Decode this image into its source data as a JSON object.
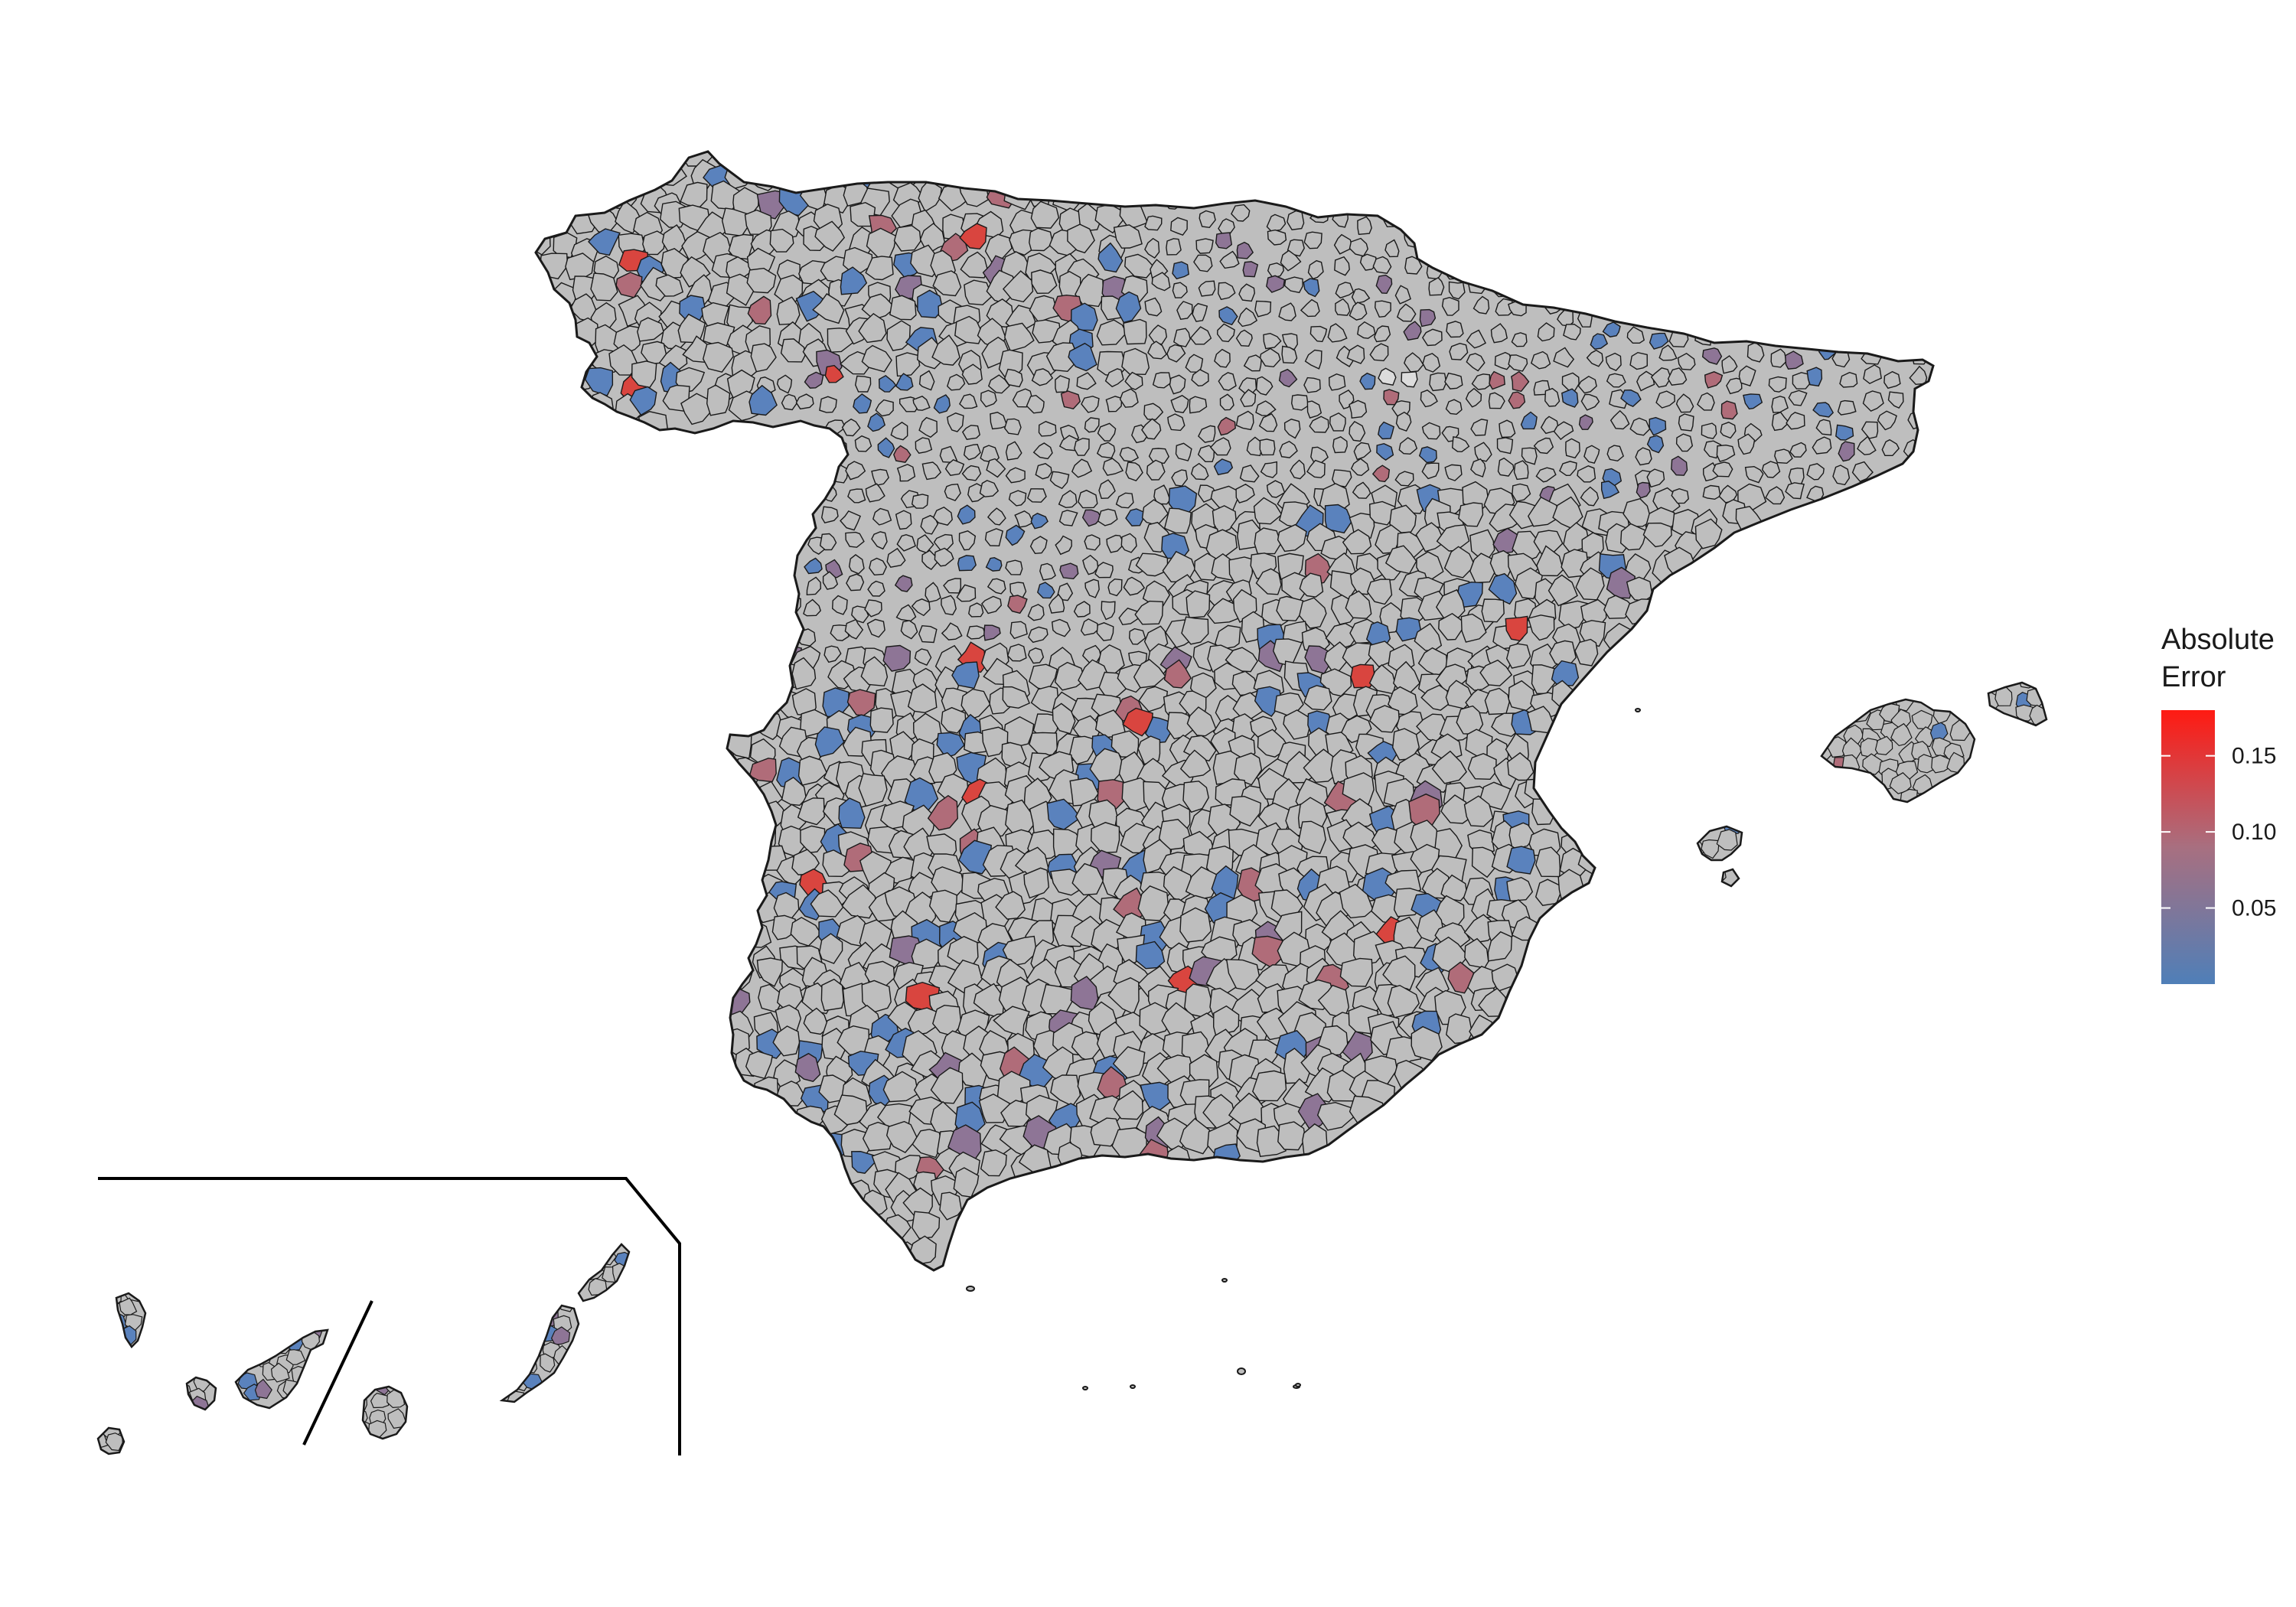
{
  "legend": {
    "title_line1": "Absolute",
    "title_line2": "Error",
    "min": 0.0,
    "max": 0.18,
    "ticks": [
      {
        "value": 0.15,
        "label": "0.15"
      },
      {
        "value": 0.1,
        "label": "0.10"
      },
      {
        "value": 0.05,
        "label": "0.05"
      }
    ],
    "color_low": "#4f7fb8",
    "color_high": "#ff1a12"
  },
  "colors": {
    "background": "#ffffff",
    "land_fill": "#bebebe",
    "boundary": "#1a1a1a",
    "no_data_fill": "#dcdcdc",
    "error_blue": "#5a82bd",
    "error_purple": "#8e7596",
    "error_mauve": "#b06c79",
    "error_red": "#d9453f"
  },
  "map": {
    "regions": [
      "Iberian Peninsula",
      "Balearic Islands",
      "Canary Islands inset"
    ],
    "inset_frame": true
  }
}
